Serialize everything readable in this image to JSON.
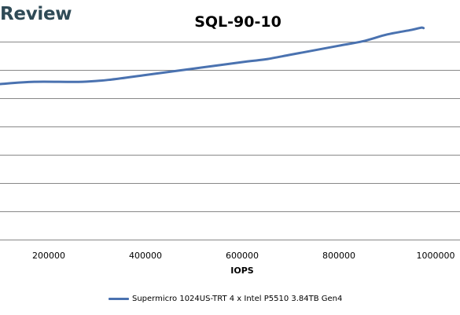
{
  "brand": {
    "text": "Review",
    "color": "#2f4a56"
  },
  "chart_data": {
    "type": "line",
    "title": "SQL-90-10",
    "xlabel": "IOPS",
    "ylabel": "",
    "xlim": [
      100000,
      1000000
    ],
    "x_ticks": [
      200000,
      400000,
      600000,
      800000,
      1000000
    ],
    "grid": true,
    "legend_position": "bottom",
    "series": [
      {
        "name": "Supermicro 1024US-TRT 4 x Intel P5510 3.84TB Gen4",
        "color": "#4a72b0",
        "x": [
          100000,
          170000,
          270000,
          330000,
          400000,
          470000,
          540000,
          610000,
          650000,
          700000,
          750000,
          800000,
          850000,
          900000,
          950000,
          970000,
          975000
        ],
        "y": [
          0.69,
          0.7,
          0.7,
          0.71,
          0.73,
          0.75,
          0.77,
          0.79,
          0.8,
          0.82,
          0.84,
          0.86,
          0.88,
          0.91,
          0.93,
          0.94,
          0.938
        ]
      }
    ],
    "ylim": [
      0,
      1
    ]
  },
  "colors": {
    "grid": "#888888",
    "background": "#ffffff"
  }
}
